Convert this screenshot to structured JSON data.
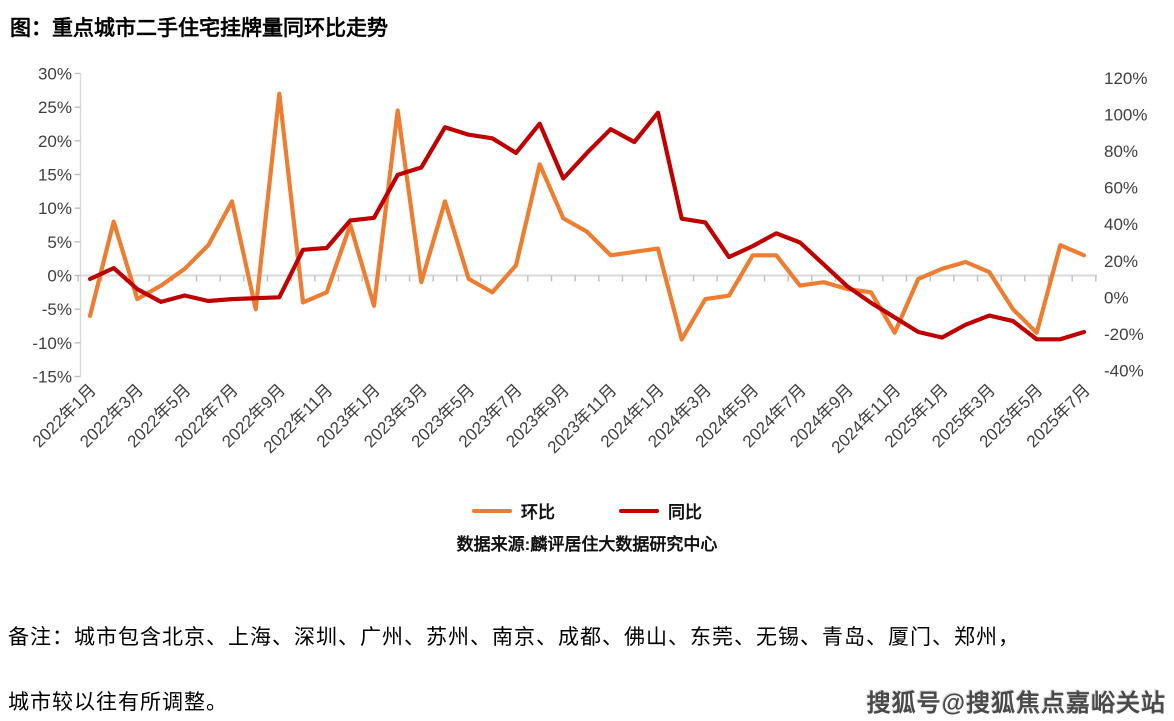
{
  "title": "图：重点城市二手住宅挂牌量同环比走势",
  "source": "数据来源:麟评居住大数据研究中心",
  "note_line1": "备注：城市包含北京、上海、深圳、广州、苏州、南京、成都、佛山、东莞、无锡、青岛、厦门、郑州，",
  "note_line2": "城市较以往有所调整。",
  "watermark": "搜狐号@搜狐焦点嘉峪关站",
  "legend": [
    {
      "label": "环比",
      "color": "#ED7D31"
    },
    {
      "label": "同比",
      "color": "#C00000"
    }
  ],
  "colors": {
    "mom_line": "#ED7D31",
    "yoy_line": "#C00000",
    "axis_line": "#d9d9d9",
    "tick_mark": "#bfbfbf",
    "axis_text": "#3f3f3f"
  },
  "chart_data": {
    "type": "line",
    "title": "重点城市二手住宅挂牌量同环比走势",
    "x": [
      "2022年1月",
      "2022年2月",
      "2022年3月",
      "2022年4月",
      "2022年5月",
      "2022年6月",
      "2022年7月",
      "2022年8月",
      "2022年9月",
      "2022年10月",
      "2022年11月",
      "2022年12月",
      "2023年1月",
      "2023年2月",
      "2023年3月",
      "2023年4月",
      "2023年5月",
      "2023年6月",
      "2023年7月",
      "2023年8月",
      "2023年9月",
      "2023年10月",
      "2023年11月",
      "2023年12月",
      "2024年1月",
      "2024年2月",
      "2024年3月",
      "2024年4月",
      "2024年5月",
      "2024年6月",
      "2024年7月",
      "2024年8月",
      "2024年9月",
      "2024年10月",
      "2024年11月",
      "2024年12月",
      "2025年1月",
      "2025年2月",
      "2025年3月",
      "2025年4月",
      "2025年5月",
      "2025年6月",
      "2025年7月"
    ],
    "x_tick_label_step": 2,
    "series": [
      {
        "name": "环比",
        "axis": "left",
        "color": "#ED7D31",
        "values": [
          -6,
          8,
          -3.5,
          -1.5,
          1,
          4.5,
          11,
          -5,
          27,
          -4,
          -2.5,
          7.5,
          -4.5,
          24.5,
          -1,
          11,
          -0.5,
          -2.5,
          1.5,
          16.5,
          8.5,
          6.5,
          3,
          3.5,
          4,
          -9.5,
          -3.5,
          -3,
          3,
          3,
          -1.5,
          -1,
          -2,
          -2.5,
          -8.5,
          -0.5,
          1,
          2,
          0.5,
          -5,
          -8.5,
          4.5,
          3
        ]
      },
      {
        "name": "同比",
        "axis": "right",
        "color": "#C00000",
        "values": [
          10,
          16,
          4.5,
          -2.5,
          1,
          -2,
          -1,
          -0.5,
          0,
          26,
          27,
          42,
          43.5,
          67,
          71,
          93,
          89,
          87,
          79,
          95,
          65,
          79,
          92,
          85,
          101,
          43,
          41,
          22,
          28,
          35,
          30,
          18,
          6,
          -3,
          -11,
          -19,
          -22,
          -15,
          -10,
          -13,
          -23,
          -23,
          -19
        ]
      }
    ],
    "left_axis": {
      "unit": "%",
      "min": -15,
      "max": 30,
      "tick_step": 5,
      "tick_labels": [
        "30%",
        "25%",
        "20%",
        "15%",
        "10%",
        "5%",
        "0%",
        "-5%",
        "-10%",
        "-15%"
      ]
    },
    "right_axis": {
      "unit": "%",
      "min": -40,
      "max": 120,
      "tick_step": 20,
      "tick_labels": [
        "120%",
        "100%",
        "80%",
        "60%",
        "40%",
        "20%",
        "0%",
        "-20%",
        "-40%"
      ]
    },
    "gridlines": "horizontal zero line only",
    "legend_position": "bottom"
  }
}
